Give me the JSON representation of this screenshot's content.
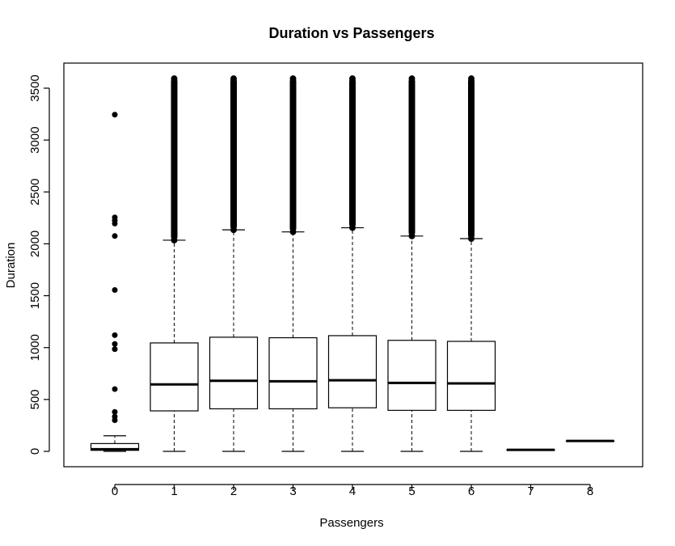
{
  "chart_data": {
    "type": "boxplot",
    "title": "Duration vs Passengers",
    "xlabel": "Passengers",
    "ylabel": "Duration",
    "ylim": [
      -150,
      3700
    ],
    "yticks": [
      0,
      500,
      1000,
      1500,
      2000,
      2500,
      3000,
      3500
    ],
    "categories": [
      "0",
      "1",
      "2",
      "3",
      "4",
      "5",
      "6",
      "7",
      "8"
    ],
    "boxes": [
      {
        "category": "0",
        "min": 0,
        "q1": 10,
        "median": 20,
        "q3": 75,
        "max": 150,
        "outliers": [
          300,
          335,
          380,
          600,
          985,
          1035,
          1120,
          1555,
          2075,
          2195,
          2225,
          2255,
          3245
        ]
      },
      {
        "category": "1",
        "min": 0,
        "q1": 390,
        "median": 645,
        "q3": 1045,
        "max": 2035,
        "outlier_range": [
          2035,
          3600
        ]
      },
      {
        "category": "2",
        "min": 0,
        "q1": 410,
        "median": 680,
        "q3": 1100,
        "max": 2135,
        "outlier_range": [
          2135,
          3600
        ]
      },
      {
        "category": "3",
        "min": 0,
        "q1": 410,
        "median": 675,
        "q3": 1095,
        "max": 2115,
        "outlier_range": [
          2115,
          3600
        ]
      },
      {
        "category": "4",
        "min": 0,
        "q1": 420,
        "median": 685,
        "q3": 1115,
        "max": 2155,
        "outlier_range": [
          2155,
          3600
        ]
      },
      {
        "category": "5",
        "min": 0,
        "q1": 395,
        "median": 660,
        "q3": 1070,
        "max": 2075,
        "outlier_range": [
          2075,
          3600
        ]
      },
      {
        "category": "6",
        "min": 0,
        "q1": 395,
        "median": 655,
        "q3": 1060,
        "max": 2050,
        "outlier_range": [
          2050,
          3600
        ]
      },
      {
        "category": "7",
        "min": 15,
        "q1": 15,
        "median": 15,
        "q3": 15,
        "max": 15
      },
      {
        "category": "8",
        "min": 100,
        "q1": 100,
        "median": 100,
        "q3": 100,
        "max": 100
      }
    ],
    "grid": false,
    "legend": "none",
    "colors": {
      "background": "#ffffff",
      "stroke": "#000000",
      "box_fill": "#ffffff"
    }
  }
}
